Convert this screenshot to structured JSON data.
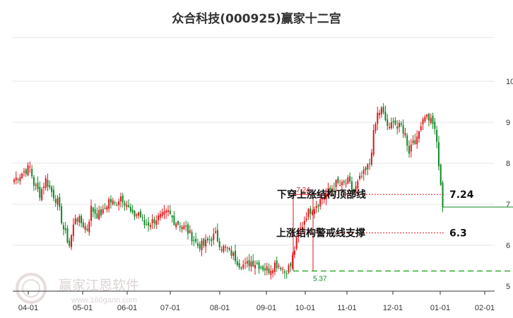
{
  "title": "众合科技(000925)赢家十二宫",
  "watermark": {
    "text": "赢家江恩软件",
    "sub": "www.160gann.com"
  },
  "colors": {
    "up": "#e0161b",
    "down": "#0f8a26",
    "resistance": "#e0161b",
    "support_dashed": "#33aa33",
    "grid": "#e4e4e4"
  },
  "chart_data": {
    "type": "candlestick",
    "title": "众合科技(000925)赢家十二宫",
    "x_tick_labels": [
      "04-01",
      "05-01",
      "06-01",
      "07-01",
      "08-01",
      "09-01",
      "10-01",
      "11-01",
      "12-01",
      "01-01",
      "02-01"
    ],
    "y_tick_labels": [
      "5",
      "6",
      "7",
      "8",
      "9",
      "10"
    ],
    "ylim": [
      5.0,
      10.1
    ],
    "y_scale": "linear",
    "grid": "horizontal",
    "annotations": [
      {
        "label": "下穿上涨结构顶部线",
        "value": "7.24",
        "price": 7.24,
        "line_style": "dotted",
        "color": "red"
      },
      {
        "label": "上涨结构警戒线支撑",
        "value": "6.3",
        "price": 6.3,
        "line_style": "dotted",
        "color": "red"
      }
    ],
    "box_labels": {
      "top": "7.24",
      "bottom": "5.37"
    },
    "support_line": {
      "price": 5.37,
      "line_style": "dashed",
      "color": "green"
    },
    "last_price_line": {
      "price": 6.93
    },
    "anchors": [
      [
        0,
        7.6
      ],
      [
        5,
        7.8
      ],
      [
        8,
        7.9
      ],
      [
        10,
        7.5
      ],
      [
        13,
        7.25
      ],
      [
        16,
        7.6
      ],
      [
        19,
        7.3
      ],
      [
        22,
        7.05
      ],
      [
        25,
        6.4
      ],
      [
        28,
        6.0
      ],
      [
        31,
        6.7
      ],
      [
        34,
        6.55
      ],
      [
        37,
        6.4
      ],
      [
        39,
        6.9
      ],
      [
        42,
        6.75
      ],
      [
        45,
        6.8
      ],
      [
        48,
        7.1
      ],
      [
        51,
        7.0
      ],
      [
        54,
        7.2
      ],
      [
        57,
        7.0
      ],
      [
        60,
        6.7
      ],
      [
        63,
        6.8
      ],
      [
        66,
        6.5
      ],
      [
        69,
        6.55
      ],
      [
        72,
        6.65
      ],
      [
        75,
        6.7
      ],
      [
        78,
        6.8
      ],
      [
        81,
        6.6
      ],
      [
        84,
        6.5
      ],
      [
        87,
        6.4
      ],
      [
        90,
        6.2
      ],
      [
        93,
        6.0
      ],
      [
        96,
        6.0
      ],
      [
        99,
        6.15
      ],
      [
        102,
        6.25
      ],
      [
        105,
        5.95
      ],
      [
        108,
        5.9
      ],
      [
        111,
        5.75
      ],
      [
        114,
        5.55
      ],
      [
        117,
        5.5
      ],
      [
        120,
        5.6
      ],
      [
        123,
        5.55
      ],
      [
        126,
        5.45
      ],
      [
        129,
        5.4
      ],
      [
        132,
        5.55
      ],
      [
        135,
        5.5
      ],
      [
        137,
        5.35
      ],
      [
        140,
        5.5
      ],
      [
        142,
        5.9
      ],
      [
        144,
        6.3
      ],
      [
        146,
        6.5
      ],
      [
        148,
        6.75
      ],
      [
        151,
        6.9
      ],
      [
        154,
        7.05
      ],
      [
        157,
        7.2
      ],
      [
        160,
        7.35
      ],
      [
        163,
        7.5
      ],
      [
        166,
        7.45
      ],
      [
        169,
        7.55
      ],
      [
        172,
        7.3
      ],
      [
        175,
        7.6
      ],
      [
        178,
        7.8
      ],
      [
        180,
        8.0
      ],
      [
        182,
        8.7
      ],
      [
        184,
        9.2
      ],
      [
        186,
        9.3
      ],
      [
        188,
        9.05
      ],
      [
        190,
        8.8
      ],
      [
        192,
        9.1
      ],
      [
        194,
        8.85
      ],
      [
        196,
        8.9
      ],
      [
        198,
        8.7
      ],
      [
        200,
        8.3
      ],
      [
        202,
        8.6
      ],
      [
        204,
        8.55
      ],
      [
        206,
        9.0
      ],
      [
        208,
        9.2
      ],
      [
        210,
        9.1
      ],
      [
        212,
        9.0
      ],
      [
        214,
        8.5
      ],
      [
        216,
        7.4
      ],
      [
        217,
        6.93
      ]
    ]
  }
}
